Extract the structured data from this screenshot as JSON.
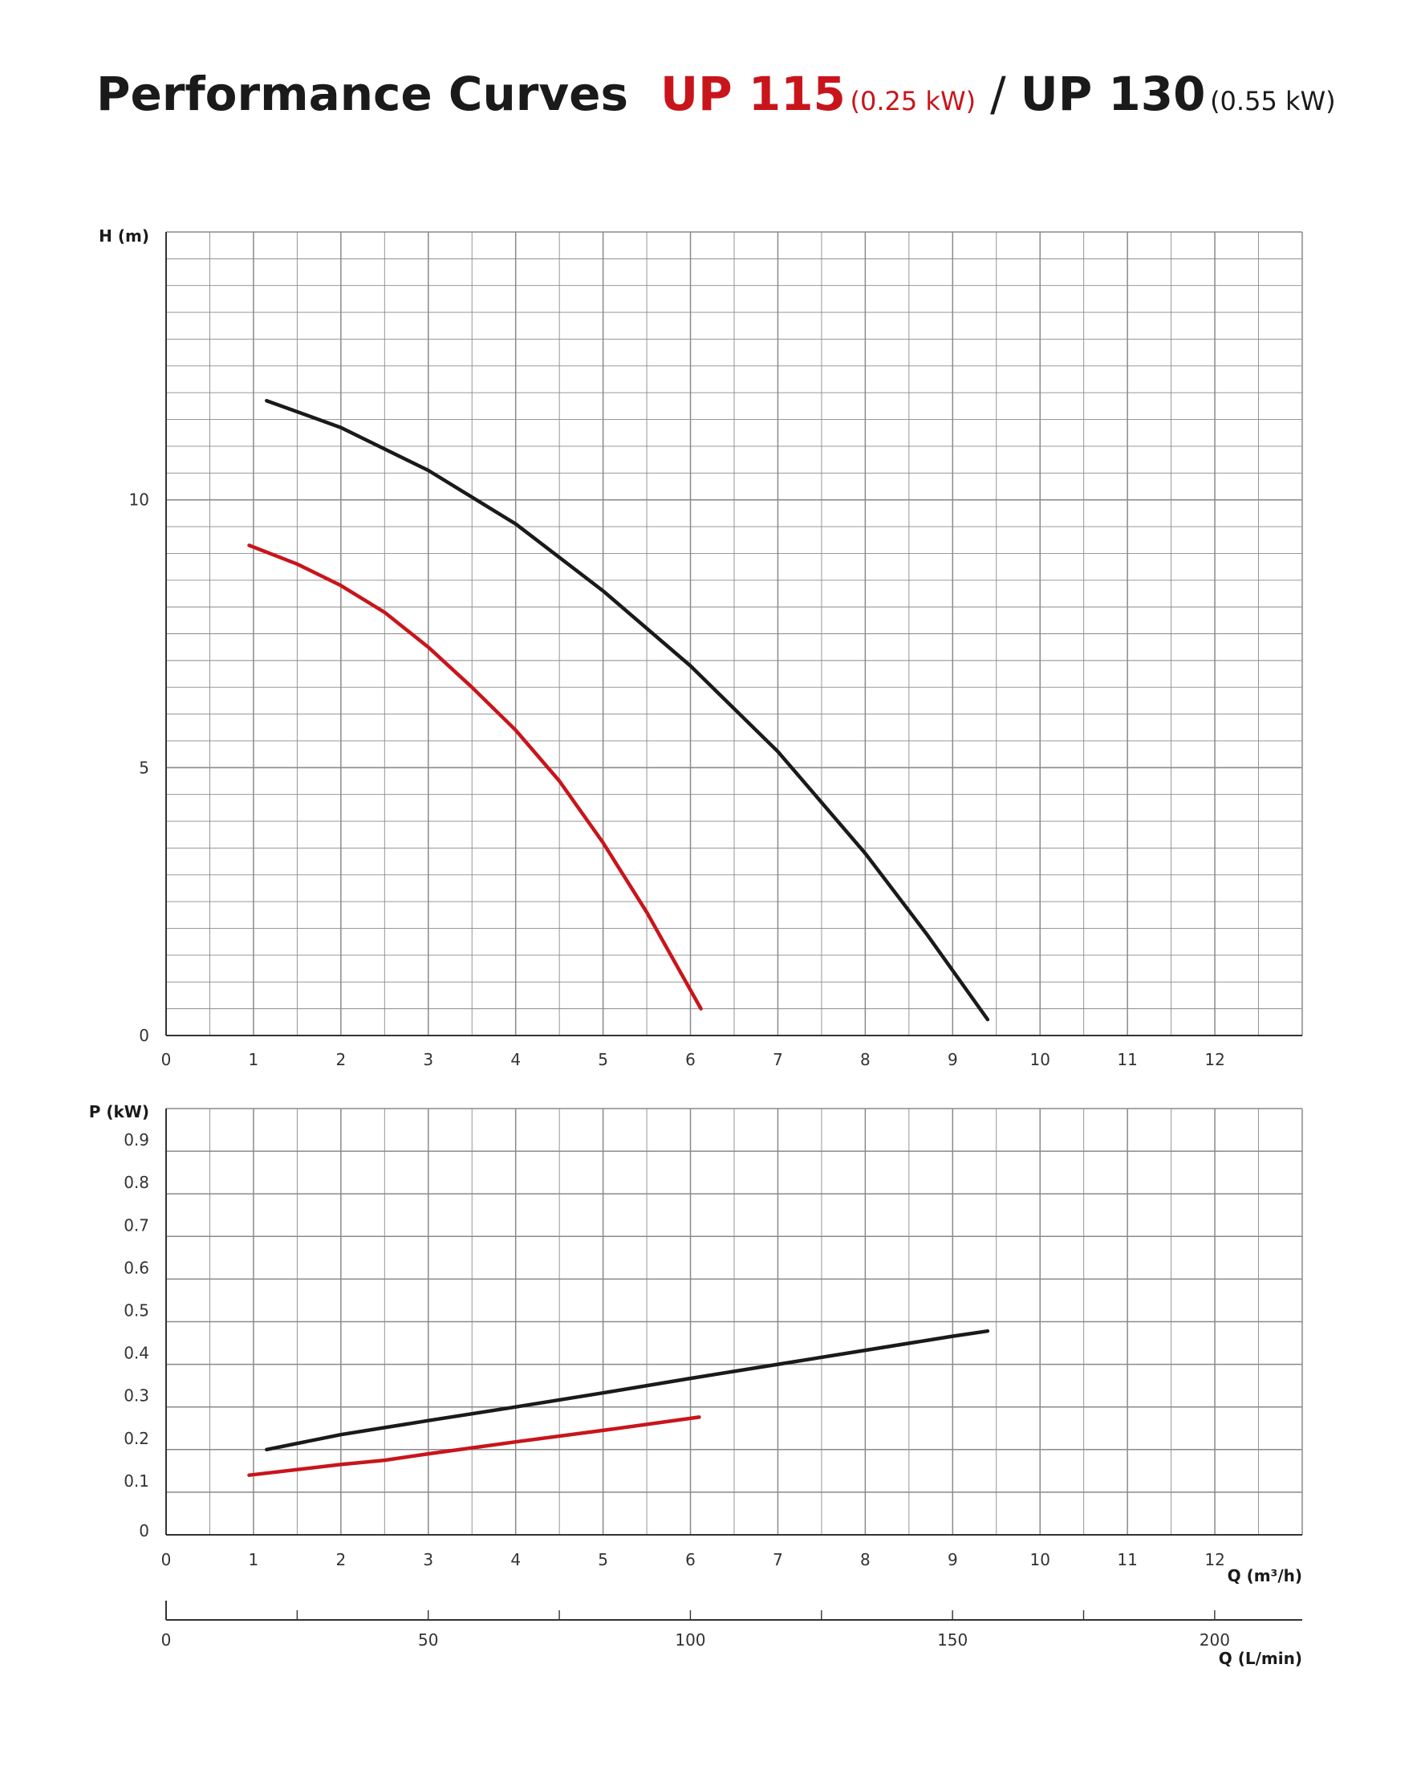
{
  "title": {
    "main": "Performance Curves",
    "model_a": "UP 115",
    "model_a_power": "(0.25 kW)",
    "separator": "/",
    "model_b": "UP 130",
    "model_b_power": "(0.55 kW)"
  },
  "colors": {
    "up115": "#c8151b",
    "up130": "#1a1a1a",
    "grid": "#8a8a8a",
    "axis": "#333333"
  },
  "chart_data": [
    {
      "type": "line",
      "title": "",
      "xlabel": "",
      "ylabel": "H (m)",
      "xlim": [
        0,
        13
      ],
      "ylim": [
        0,
        15
      ],
      "x_ticks": [
        "0",
        "1",
        "2",
        "3",
        "4",
        "5",
        "6",
        "7",
        "8",
        "9",
        "10",
        "11",
        "12"
      ],
      "y_ticks": [
        "0",
        "5",
        "10"
      ],
      "y_tick_values": [
        0,
        5,
        10
      ],
      "grid": true,
      "series": [
        {
          "key": "up130",
          "x": [
            1.15,
            2,
            3,
            4,
            5,
            6,
            7,
            8,
            8.7,
            9.4
          ],
          "y": [
            11.85,
            11.35,
            10.55,
            9.55,
            8.3,
            6.9,
            5.3,
            3.4,
            1.9,
            0.3
          ]
        },
        {
          "key": "up115",
          "x": [
            0.95,
            1.5,
            2,
            2.5,
            3,
            3.5,
            4,
            4.5,
            5,
            5.5,
            6.12
          ],
          "y": [
            9.15,
            8.8,
            8.4,
            7.9,
            7.25,
            6.5,
            5.7,
            4.75,
            3.6,
            2.3,
            0.5
          ]
        }
      ]
    },
    {
      "type": "line",
      "title": "",
      "xlabel": "Q (m³/h)",
      "ylabel": "P (kW)",
      "xlim": [
        0,
        13
      ],
      "ylim": [
        0,
        1
      ],
      "x_ticks": [
        "0",
        "1",
        "2",
        "3",
        "4",
        "5",
        "6",
        "7",
        "8",
        "9",
        "10",
        "11",
        "12"
      ],
      "y_ticks": [
        "0",
        "0.1",
        "0.2",
        "0.3",
        "0.4",
        "0.5",
        "0.6",
        "0.7",
        "0.8",
        "0.9"
      ],
      "y_tick_values": [
        0,
        0.1,
        0.2,
        0.3,
        0.4,
        0.5,
        0.6,
        0.7,
        0.8,
        0.9
      ],
      "grid": true,
      "series": [
        {
          "key": "up130",
          "x": [
            1.15,
            2,
            3,
            4,
            5,
            6,
            7,
            8,
            9,
            9.4
          ],
          "y": [
            0.2,
            0.235,
            0.268,
            0.3,
            0.333,
            0.367,
            0.4,
            0.433,
            0.466,
            0.478
          ]
        },
        {
          "key": "up115",
          "x": [
            0.95,
            2,
            2.5,
            3,
            4,
            5,
            6.1
          ],
          "y": [
            0.14,
            0.165,
            0.175,
            0.19,
            0.218,
            0.245,
            0.276
          ]
        }
      ]
    },
    {
      "type": "axis",
      "xlabel": "Q (L/min)",
      "xlim": [
        0,
        216.7
      ],
      "x_ticks": [
        "0",
        "50",
        "100",
        "150",
        "200"
      ],
      "x_tick_values": [
        0,
        50,
        100,
        150,
        200
      ],
      "minor_tick_step": 25
    }
  ]
}
